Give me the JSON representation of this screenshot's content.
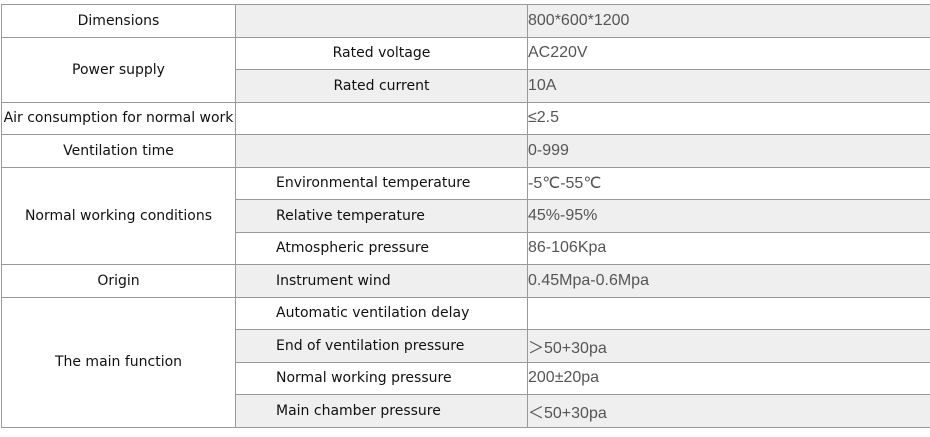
{
  "rows": [
    {
      "label": "Dimensions",
      "sub": "",
      "value": "800*600*1200"
    },
    {
      "label": "Power supply",
      "sub": "Rated voltage",
      "value": "AC220V"
    },
    {
      "label": "",
      "sub": "Rated current",
      "value": "10A"
    },
    {
      "label": "Air consumption for normal work",
      "sub": "",
      "value": "≤2.5"
    },
    {
      "label": "Ventilation time",
      "sub": "",
      "value": "0-999"
    },
    {
      "label": "Normal working conditions",
      "sub": "Environmental temperature",
      "value": "-5℃-55℃"
    },
    {
      "label": "",
      "sub": "Relative temperature",
      "value": "45%-95%"
    },
    {
      "label": "",
      "sub": "Atmospheric pressure",
      "value": "86-106Kpa"
    },
    {
      "label": "Origin",
      "sub": "Instrument wind",
      "value": "0.45Mpa-0.6Mpa"
    },
    {
      "label": "The main function",
      "sub": "Automatic ventilation delay",
      "value": ""
    },
    {
      "label": "",
      "sub": "End of ventilation pressure",
      "value": "＞50+30pa"
    },
    {
      "label": "",
      "sub": "Normal working pressure",
      "value": "200±20pa"
    },
    {
      "label": "",
      "sub": "Main chamber pressure",
      "value": "＜50+30pa"
    }
  ]
}
